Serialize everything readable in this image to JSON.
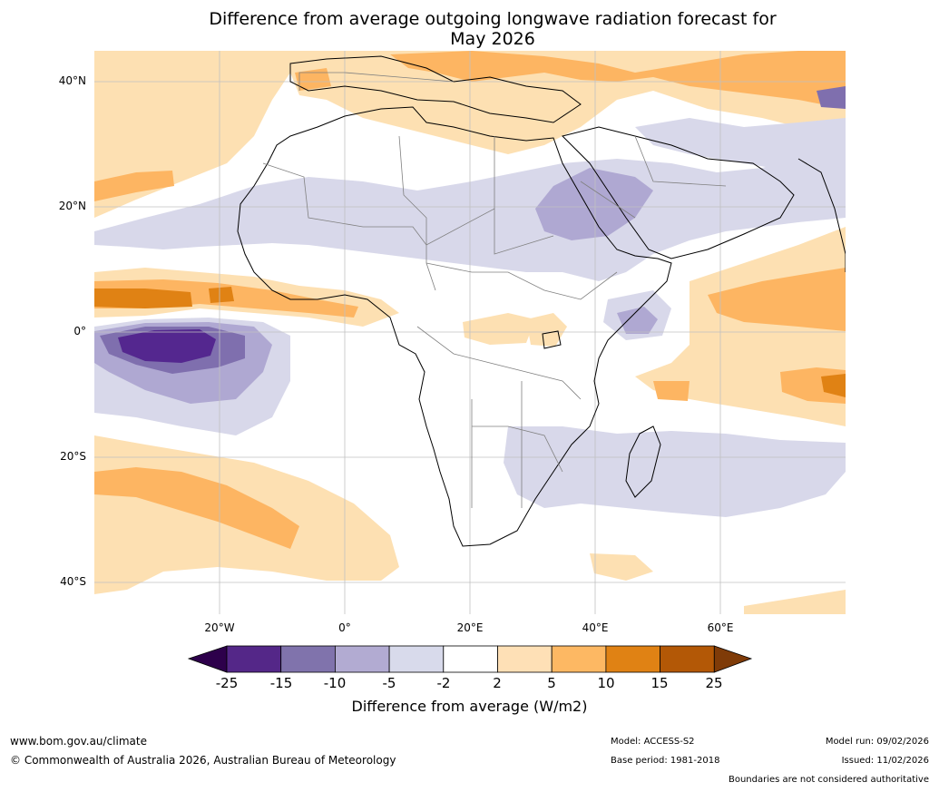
{
  "title": {
    "line1": "Difference from average outgoing longwave radiation forecast for",
    "line2": "May 2026"
  },
  "map": {
    "lat_labels": [
      "40°N",
      "20°N",
      "0°",
      "20°S",
      "40°S"
    ],
    "lon_labels": [
      "20°W",
      "0°",
      "20°E",
      "40°E",
      "60°E"
    ],
    "lat_range": [
      -45,
      45
    ],
    "lon_range": [
      -40,
      80
    ],
    "colors": {
      "strong_neg": "#54278f",
      "neg_15": "#7f6fae",
      "neg_10": "#afa8d2",
      "neg_5": "#d8d8ea",
      "neutral": "#ffffff",
      "pos_5": "#fde0b2",
      "pos_10": "#fdb562",
      "pos_15": "#e08214",
      "strong_pos": "#b35806",
      "border": "#808080",
      "coast": "#000000",
      "grid": "#c0c0c0"
    }
  },
  "colorbar": {
    "ticks": [
      "-25",
      "-15",
      "-10",
      "-5",
      "-2",
      "2",
      "5",
      "10",
      "15",
      "25"
    ],
    "colors": [
      "#2d004b",
      "#542788",
      "#8073ac",
      "#b2abd2",
      "#d8daeb",
      "#ffffff",
      "#fee0b6",
      "#fdb863",
      "#e08214",
      "#b35806",
      "#7f3b08"
    ],
    "label": "Difference from average (W/m2)"
  },
  "footer": {
    "website": "www.bom.gov.au/climate",
    "copyright": "© Commonwealth of Australia 2026, Australian Bureau of Meteorology",
    "model": "Model: ACCESS-S2",
    "base_period": "Base period: 1981-2018",
    "model_run": "Model run: 09/02/2026",
    "issued": "Issued: 11/02/2026",
    "disclaimer": "Boundaries are not considered authoritative"
  }
}
